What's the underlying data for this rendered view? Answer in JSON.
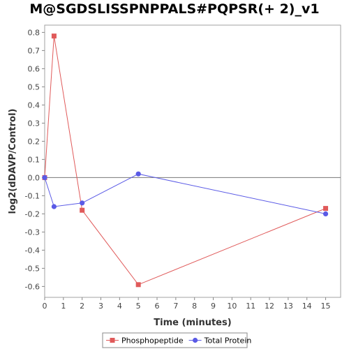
{
  "chart_data": {
    "type": "line",
    "title": "M@SGDSLISSPNPPALS#PQPSR(+ 2)_v1",
    "xlabel": "Time (minutes)",
    "ylabel": "log2(dDAVP/Control)",
    "xlim": [
      0,
      15.8
    ],
    "ylim": [
      -0.66,
      0.84
    ],
    "x_ticks": [
      0,
      1,
      2,
      3,
      4,
      5,
      6,
      7,
      8,
      9,
      10,
      11,
      12,
      13,
      14,
      15
    ],
    "y_ticks": [
      0.8,
      0.7,
      0.6,
      0.5,
      0.4,
      0.3,
      0.2,
      0.1,
      0.0,
      -0.1,
      -0.2,
      -0.3,
      -0.4,
      -0.5,
      -0.6
    ],
    "y_tick_labels": [
      "0.8",
      "0.7",
      "0.6",
      "0.5",
      "0.4",
      "0.3",
      "0.2",
      "0.1",
      "0.0",
      "-0.1",
      "-0.2",
      "-0.3",
      "-0.4",
      "-0.5",
      "-0.6"
    ],
    "zero_line": true,
    "grid": false,
    "legend_position": "bottom",
    "series": [
      {
        "name": "Phosphopeptide",
        "color": "#e05a5a",
        "marker": "square",
        "x": [
          0,
          0.5,
          2,
          5,
          15
        ],
        "y": [
          0.0,
          0.78,
          -0.18,
          -0.59,
          -0.17
        ]
      },
      {
        "name": "Total Protein",
        "color": "#5a5ae6",
        "marker": "circle",
        "x": [
          0,
          0.5,
          2,
          5,
          15
        ],
        "y": [
          0.0,
          -0.16,
          -0.14,
          0.02,
          -0.2
        ]
      }
    ]
  }
}
